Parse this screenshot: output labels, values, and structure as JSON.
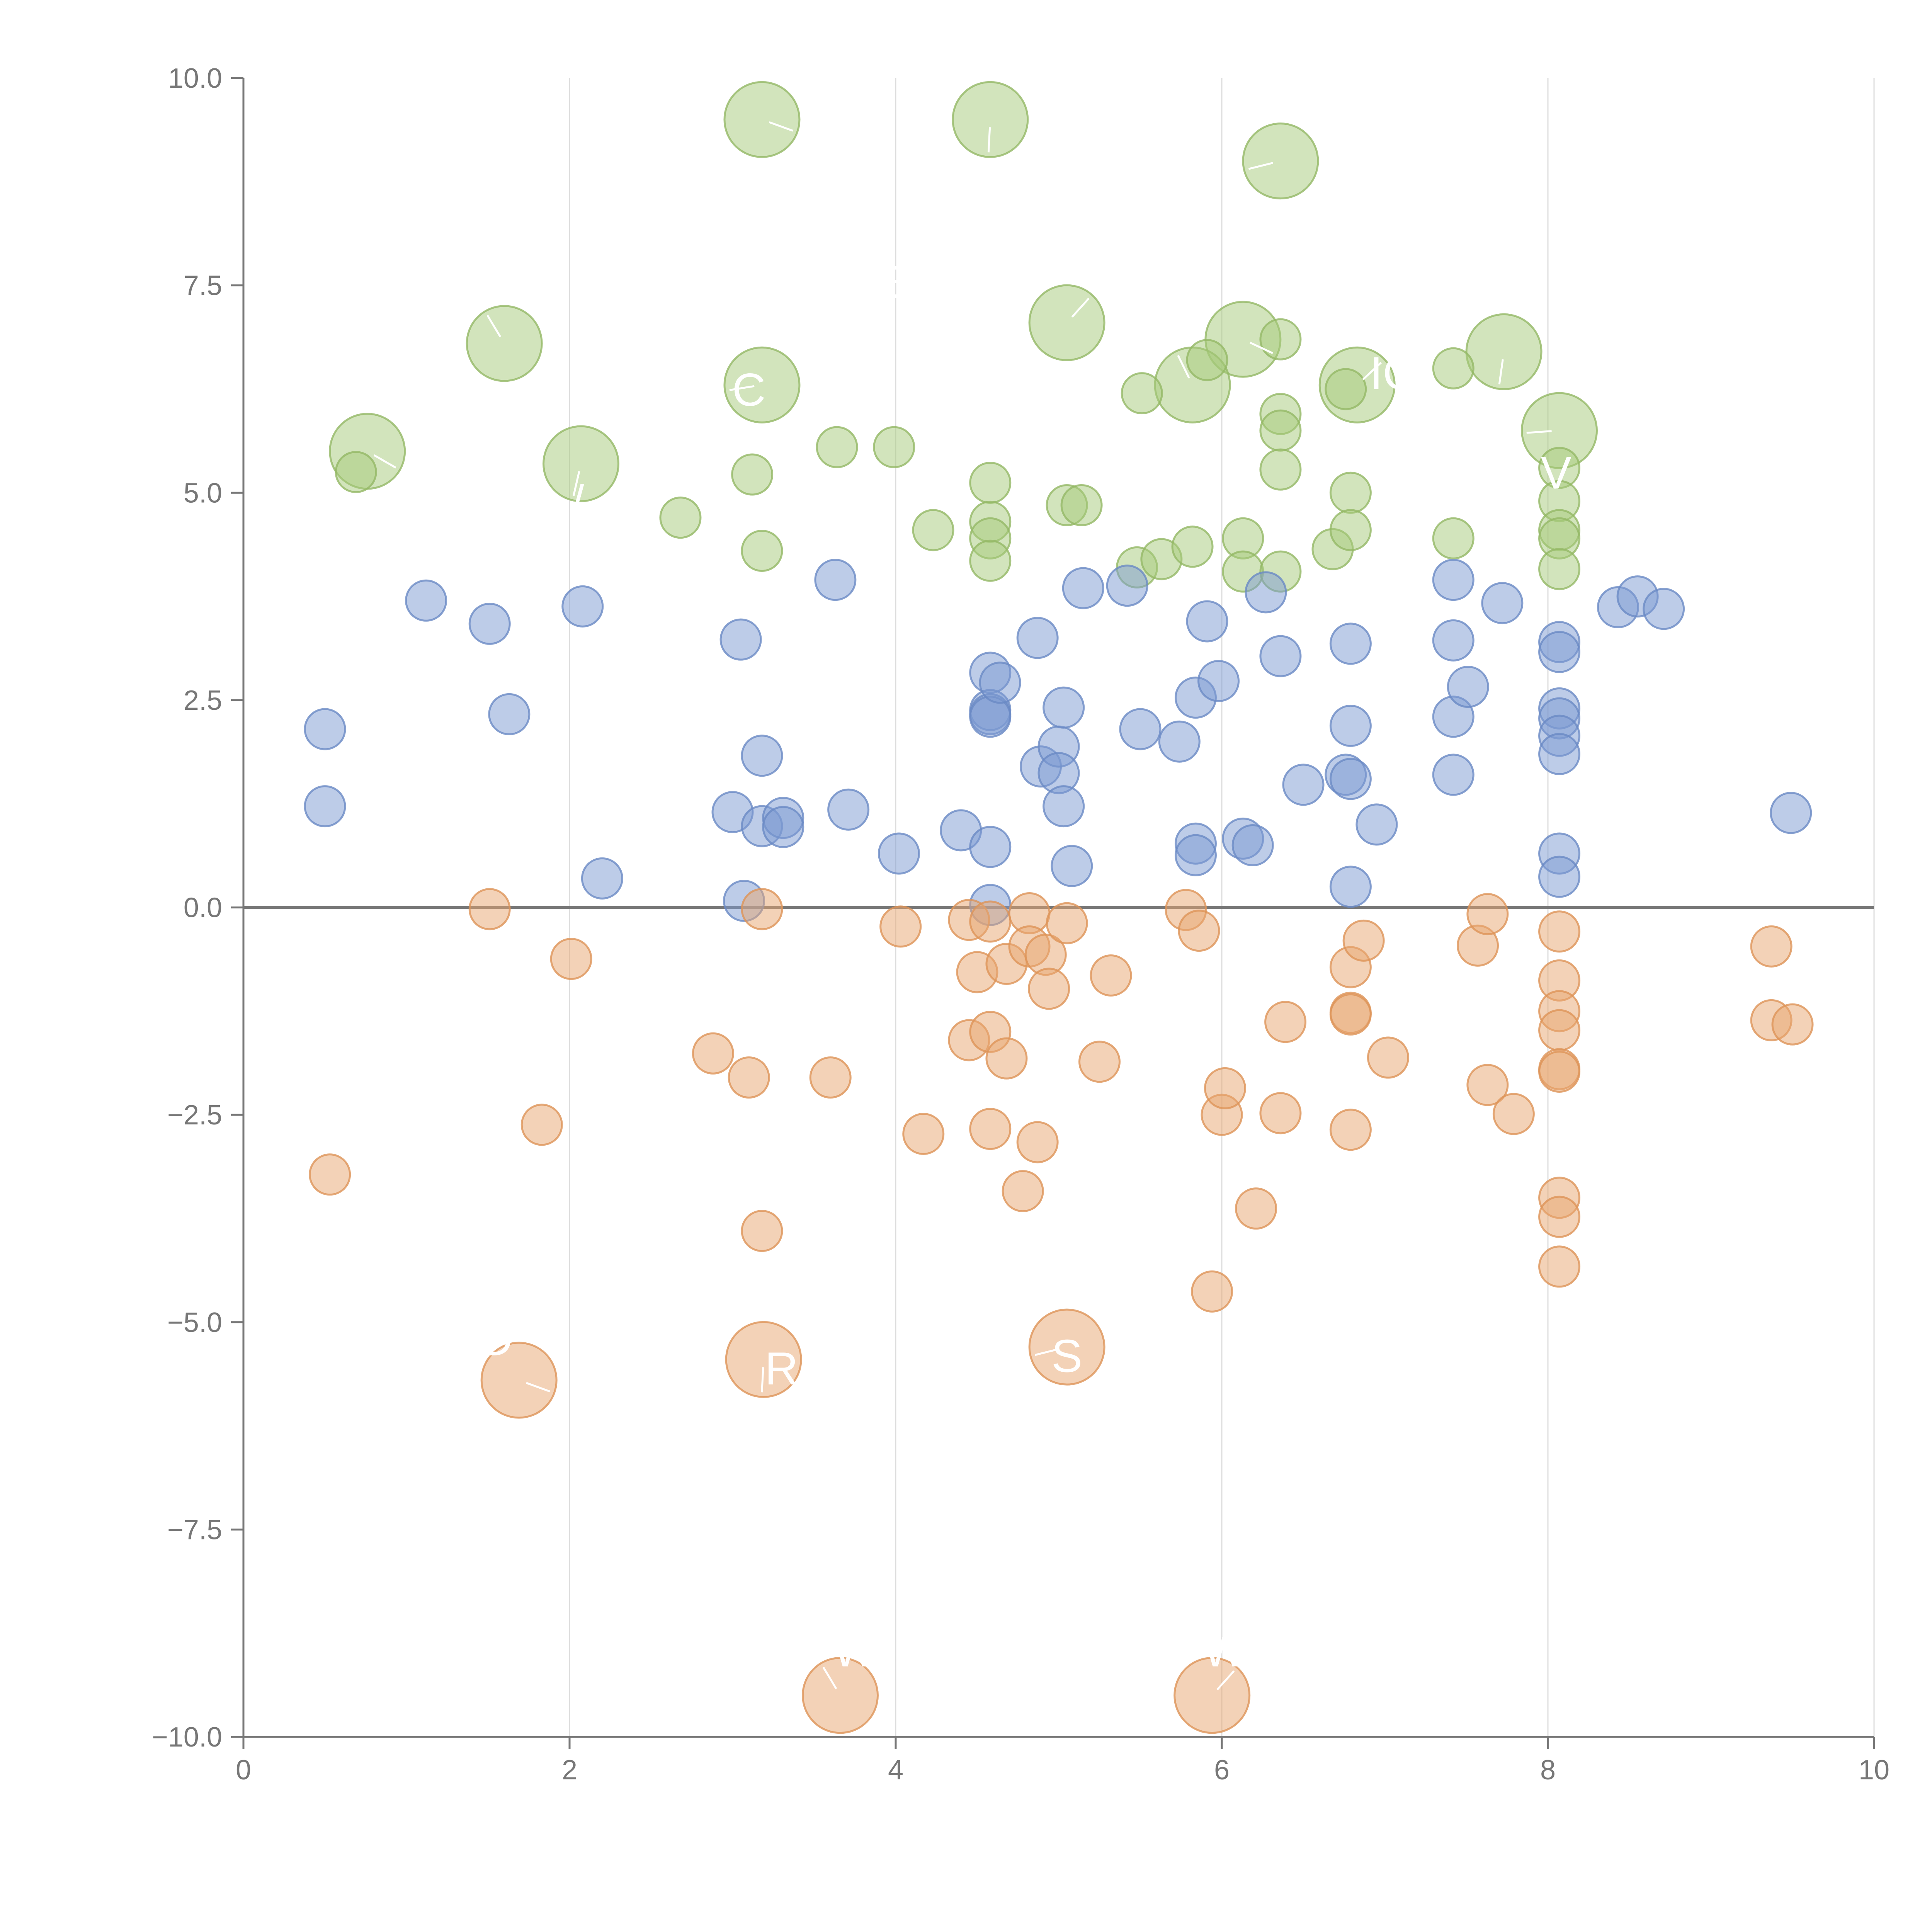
{
  "chart_data": {
    "type": "scatter",
    "title": "",
    "xlabel": "",
    "ylabel": "",
    "xlim": [
      0,
      10
    ],
    "ylim": [
      -10,
      10
    ],
    "x_ticks": [
      "0",
      "2",
      "4",
      "6",
      "8",
      "10"
    ],
    "y_ticks": [
      "10.0",
      "7.5",
      "5.0",
      "2.5",
      "0.0",
      "−2.5",
      "−5.0",
      "−7.5",
      "−10.0"
    ],
    "x_tick_values": [
      0,
      2,
      4,
      6,
      8,
      10
    ],
    "y_tick_values": [
      10,
      7.5,
      5,
      2.5,
      0,
      -2.5,
      -5,
      -7.5,
      -10
    ],
    "x_grid": true,
    "y_grid": false,
    "reference_line_y": 0,
    "legend": "none",
    "size_note": "r is bubble size in relative units (1 = small, 2 = large)",
    "colors": {
      "green": "#a6c97a",
      "blue": "#7b9ad1",
      "orange": "#e8a56f",
      "green_stroke": "#94b865",
      "blue_stroke": "#6a89c4",
      "orange_stroke": "#dd9458"
    },
    "series": [
      {
        "name": "green",
        "color_key": "green",
        "points": [
          {
            "x": 3.18,
            "y": 9.5,
            "r": 2
          },
          {
            "x": 4.58,
            "y": 9.5,
            "r": 2
          },
          {
            "x": 6.36,
            "y": 9.0,
            "r": 2
          },
          {
            "x": 1.6,
            "y": 6.8,
            "r": 2
          },
          {
            "x": 5.05,
            "y": 7.05,
            "r": 2
          },
          {
            "x": 6.13,
            "y": 6.85,
            "r": 2
          },
          {
            "x": 7.73,
            "y": 6.7,
            "r": 2
          },
          {
            "x": 3.18,
            "y": 6.3,
            "r": 2
          },
          {
            "x": 5.82,
            "y": 6.3,
            "r": 2
          },
          {
            "x": 6.83,
            "y": 6.3,
            "r": 2
          },
          {
            "x": 0.76,
            "y": 5.5,
            "r": 2
          },
          {
            "x": 2.07,
            "y": 5.35,
            "r": 2
          },
          {
            "x": 8.07,
            "y": 5.75,
            "r": 2
          },
          {
            "x": 0.69,
            "y": 5.25,
            "r": 1
          },
          {
            "x": 2.68,
            "y": 4.7,
            "r": 1
          },
          {
            "x": 3.12,
            "y": 5.22,
            "r": 1
          },
          {
            "x": 3.18,
            "y": 4.3,
            "r": 1
          },
          {
            "x": 3.64,
            "y": 5.55,
            "r": 1
          },
          {
            "x": 3.99,
            "y": 5.55,
            "r": 1
          },
          {
            "x": 4.23,
            "y": 4.55,
            "r": 1
          },
          {
            "x": 4.58,
            "y": 5.12,
            "r": 1
          },
          {
            "x": 4.58,
            "y": 4.65,
            "r": 1
          },
          {
            "x": 4.58,
            "y": 4.45,
            "r": 1
          },
          {
            "x": 4.58,
            "y": 4.18,
            "r": 1
          },
          {
            "x": 5.05,
            "y": 4.85,
            "r": 1
          },
          {
            "x": 5.14,
            "y": 4.85,
            "r": 1
          },
          {
            "x": 5.48,
            "y": 4.1,
            "r": 1
          },
          {
            "x": 5.51,
            "y": 6.2,
            "r": 1
          },
          {
            "x": 5.63,
            "y": 4.2,
            "r": 1
          },
          {
            "x": 5.82,
            "y": 4.35,
            "r": 1
          },
          {
            "x": 5.91,
            "y": 6.6,
            "r": 1
          },
          {
            "x": 6.13,
            "y": 4.45,
            "r": 1
          },
          {
            "x": 6.13,
            "y": 4.05,
            "r": 1
          },
          {
            "x": 6.36,
            "y": 6.85,
            "r": 1
          },
          {
            "x": 6.36,
            "y": 5.95,
            "r": 1
          },
          {
            "x": 6.36,
            "y": 5.75,
            "r": 1
          },
          {
            "x": 6.36,
            "y": 5.28,
            "r": 1
          },
          {
            "x": 6.36,
            "y": 4.05,
            "r": 1
          },
          {
            "x": 6.68,
            "y": 4.32,
            "r": 1
          },
          {
            "x": 6.76,
            "y": 6.25,
            "r": 1
          },
          {
            "x": 6.79,
            "y": 5.0,
            "r": 1
          },
          {
            "x": 6.79,
            "y": 4.55,
            "r": 1
          },
          {
            "x": 7.42,
            "y": 6.5,
            "r": 1
          },
          {
            "x": 7.42,
            "y": 4.45,
            "r": 1
          },
          {
            "x": 8.07,
            "y": 5.3,
            "r": 1
          },
          {
            "x": 8.07,
            "y": 4.9,
            "r": 1
          },
          {
            "x": 8.07,
            "y": 4.55,
            "r": 1
          },
          {
            "x": 8.07,
            "y": 4.45,
            "r": 1
          },
          {
            "x": 8.07,
            "y": 4.08,
            "r": 1
          }
        ]
      },
      {
        "name": "blue",
        "color_key": "blue",
        "points": [
          {
            "x": 0.5,
            "y": 2.15,
            "r": 1
          },
          {
            "x": 0.5,
            "y": 1.22,
            "r": 1
          },
          {
            "x": 1.12,
            "y": 3.7,
            "r": 1
          },
          {
            "x": 1.51,
            "y": 3.42,
            "r": 1
          },
          {
            "x": 1.63,
            "y": 2.33,
            "r": 1
          },
          {
            "x": 2.08,
            "y": 3.63,
            "r": 1
          },
          {
            "x": 2.2,
            "y": 0.35,
            "r": 1
          },
          {
            "x": 3.0,
            "y": 1.15,
            "r": 1
          },
          {
            "x": 3.05,
            "y": 3.23,
            "r": 1
          },
          {
            "x": 3.07,
            "y": 0.08,
            "r": 1
          },
          {
            "x": 3.18,
            "y": 1.83,
            "r": 1
          },
          {
            "x": 3.18,
            "y": 0.98,
            "r": 1
          },
          {
            "x": 3.31,
            "y": 1.08,
            "r": 1
          },
          {
            "x": 3.31,
            "y": 0.97,
            "r": 1
          },
          {
            "x": 3.63,
            "y": 3.95,
            "r": 1
          },
          {
            "x": 3.71,
            "y": 1.18,
            "r": 1
          },
          {
            "x": 4.02,
            "y": 0.65,
            "r": 1
          },
          {
            "x": 4.4,
            "y": 0.93,
            "r": 1
          },
          {
            "x": 4.58,
            "y": 2.83,
            "r": 1
          },
          {
            "x": 4.58,
            "y": 2.38,
            "r": 1
          },
          {
            "x": 4.58,
            "y": 2.33,
            "r": 1
          },
          {
            "x": 4.58,
            "y": 2.3,
            "r": 1
          },
          {
            "x": 4.58,
            "y": 0.73,
            "r": 1
          },
          {
            "x": 4.58,
            "y": 0.03,
            "r": 1
          },
          {
            "x": 4.64,
            "y": 2.71,
            "r": 1
          },
          {
            "x": 4.87,
            "y": 3.25,
            "r": 1
          },
          {
            "x": 4.89,
            "y": 1.7,
            "r": 1
          },
          {
            "x": 5.0,
            "y": 1.94,
            "r": 1
          },
          {
            "x": 5.0,
            "y": 1.62,
            "r": 1
          },
          {
            "x": 5.03,
            "y": 2.41,
            "r": 1
          },
          {
            "x": 5.03,
            "y": 1.22,
            "r": 1
          },
          {
            "x": 5.08,
            "y": 0.5,
            "r": 1
          },
          {
            "x": 5.15,
            "y": 3.85,
            "r": 1
          },
          {
            "x": 5.42,
            "y": 3.88,
            "r": 1
          },
          {
            "x": 5.5,
            "y": 2.15,
            "r": 1
          },
          {
            "x": 5.74,
            "y": 2.0,
            "r": 1
          },
          {
            "x": 5.84,
            "y": 2.53,
            "r": 1
          },
          {
            "x": 5.84,
            "y": 0.77,
            "r": 1
          },
          {
            "x": 5.84,
            "y": 0.63,
            "r": 1
          },
          {
            "x": 5.91,
            "y": 3.45,
            "r": 1
          },
          {
            "x": 5.98,
            "y": 2.73,
            "r": 1
          },
          {
            "x": 6.13,
            "y": 0.83,
            "r": 1
          },
          {
            "x": 6.19,
            "y": 0.75,
            "r": 1
          },
          {
            "x": 6.27,
            "y": 3.8,
            "r": 1
          },
          {
            "x": 6.36,
            "y": 3.03,
            "r": 1
          },
          {
            "x": 6.5,
            "y": 1.48,
            "r": 1
          },
          {
            "x": 6.76,
            "y": 1.6,
            "r": 1
          },
          {
            "x": 6.79,
            "y": 3.18,
            "r": 1
          },
          {
            "x": 6.79,
            "y": 2.19,
            "r": 1
          },
          {
            "x": 6.79,
            "y": 1.55,
            "r": 1
          },
          {
            "x": 6.79,
            "y": 0.25,
            "r": 1
          },
          {
            "x": 6.95,
            "y": 1.0,
            "r": 1
          },
          {
            "x": 7.42,
            "y": 3.95,
            "r": 1
          },
          {
            "x": 7.42,
            "y": 3.22,
            "r": 1
          },
          {
            "x": 7.42,
            "y": 2.3,
            "r": 1
          },
          {
            "x": 7.42,
            "y": 1.6,
            "r": 1
          },
          {
            "x": 7.51,
            "y": 2.66,
            "r": 1
          },
          {
            "x": 7.72,
            "y": 3.67,
            "r": 1
          },
          {
            "x": 8.07,
            "y": 3.2,
            "r": 1
          },
          {
            "x": 8.07,
            "y": 3.08,
            "r": 1
          },
          {
            "x": 8.07,
            "y": 2.4,
            "r": 1
          },
          {
            "x": 8.07,
            "y": 2.28,
            "r": 1
          },
          {
            "x": 8.07,
            "y": 2.07,
            "r": 1
          },
          {
            "x": 8.07,
            "y": 1.85,
            "r": 1
          },
          {
            "x": 8.07,
            "y": 0.65,
            "r": 1
          },
          {
            "x": 8.07,
            "y": 0.37,
            "r": 1
          },
          {
            "x": 8.43,
            "y": 3.62,
            "r": 1
          },
          {
            "x": 8.55,
            "y": 3.75,
            "r": 1
          },
          {
            "x": 8.71,
            "y": 3.6,
            "r": 1
          },
          {
            "x": 9.49,
            "y": 1.14,
            "r": 1
          }
        ]
      },
      {
        "name": "orange",
        "color_key": "orange",
        "points": [
          {
            "x": 1.69,
            "y": -5.7,
            "r": 2
          },
          {
            "x": 3.19,
            "y": -5.45,
            "r": 2
          },
          {
            "x": 5.05,
            "y": -5.3,
            "r": 2
          },
          {
            "x": 3.66,
            "y": -9.5,
            "r": 2
          },
          {
            "x": 5.94,
            "y": -9.5,
            "r": 2
          },
          {
            "x": 0.53,
            "y": -3.22,
            "r": 1
          },
          {
            "x": 1.51,
            "y": -0.02,
            "r": 1
          },
          {
            "x": 1.83,
            "y": -2.62,
            "r": 1
          },
          {
            "x": 2.01,
            "y": -0.62,
            "r": 1
          },
          {
            "x": 2.88,
            "y": -1.76,
            "r": 1
          },
          {
            "x": 3.1,
            "y": -2.05,
            "r": 1
          },
          {
            "x": 3.18,
            "y": -0.02,
            "r": 1
          },
          {
            "x": 3.18,
            "y": -3.9,
            "r": 1
          },
          {
            "x": 3.6,
            "y": -2.05,
            "r": 1
          },
          {
            "x": 4.03,
            "y": -0.23,
            "r": 1
          },
          {
            "x": 4.17,
            "y": -2.73,
            "r": 1
          },
          {
            "x": 4.45,
            "y": -0.15,
            "r": 1
          },
          {
            "x": 4.45,
            "y": -1.6,
            "r": 1
          },
          {
            "x": 4.5,
            "y": -0.78,
            "r": 1
          },
          {
            "x": 4.58,
            "y": -0.17,
            "r": 1
          },
          {
            "x": 4.58,
            "y": -1.5,
            "r": 1
          },
          {
            "x": 4.58,
            "y": -2.67,
            "r": 1
          },
          {
            "x": 4.68,
            "y": -0.68,
            "r": 1
          },
          {
            "x": 4.68,
            "y": -1.82,
            "r": 1
          },
          {
            "x": 4.78,
            "y": -3.42,
            "r": 1
          },
          {
            "x": 4.82,
            "y": -0.07,
            "r": 1
          },
          {
            "x": 4.82,
            "y": -0.47,
            "r": 1
          },
          {
            "x": 4.87,
            "y": -2.83,
            "r": 1
          },
          {
            "x": 4.92,
            "y": -0.57,
            "r": 1
          },
          {
            "x": 4.94,
            "y": -0.98,
            "r": 1
          },
          {
            "x": 5.05,
            "y": -0.19,
            "r": 1
          },
          {
            "x": 5.25,
            "y": -1.86,
            "r": 1
          },
          {
            "x": 5.32,
            "y": -0.82,
            "r": 1
          },
          {
            "x": 5.78,
            "y": -0.03,
            "r": 1
          },
          {
            "x": 5.86,
            "y": -0.28,
            "r": 1
          },
          {
            "x": 5.94,
            "y": -4.63,
            "r": 1
          },
          {
            "x": 6.0,
            "y": -2.5,
            "r": 1
          },
          {
            "x": 6.02,
            "y": -2.18,
            "r": 1
          },
          {
            "x": 6.21,
            "y": -3.63,
            "r": 1
          },
          {
            "x": 6.36,
            "y": -2.48,
            "r": 1
          },
          {
            "x": 6.39,
            "y": -1.38,
            "r": 1
          },
          {
            "x": 6.79,
            "y": -0.72,
            "r": 1
          },
          {
            "x": 6.79,
            "y": -1.27,
            "r": 1
          },
          {
            "x": 6.79,
            "y": -1.29,
            "r": 1
          },
          {
            "x": 6.79,
            "y": -2.68,
            "r": 1
          },
          {
            "x": 6.87,
            "y": -0.4,
            "r": 1
          },
          {
            "x": 7.02,
            "y": -1.81,
            "r": 1
          },
          {
            "x": 7.57,
            "y": -0.46,
            "r": 1
          },
          {
            "x": 7.63,
            "y": -0.08,
            "r": 1
          },
          {
            "x": 7.63,
            "y": -2.14,
            "r": 1
          },
          {
            "x": 7.79,
            "y": -2.49,
            "r": 1
          },
          {
            "x": 8.07,
            "y": -0.29,
            "r": 1
          },
          {
            "x": 8.07,
            "y": -0.88,
            "r": 1
          },
          {
            "x": 8.07,
            "y": -1.25,
            "r": 1
          },
          {
            "x": 8.07,
            "y": -1.48,
            "r": 1
          },
          {
            "x": 8.07,
            "y": -1.95,
            "r": 1
          },
          {
            "x": 8.07,
            "y": -1.98,
            "r": 1
          },
          {
            "x": 8.07,
            "y": -3.5,
            "r": 1
          },
          {
            "x": 8.07,
            "y": -3.73,
            "r": 1
          },
          {
            "x": 8.07,
            "y": -4.33,
            "r": 1
          },
          {
            "x": 9.37,
            "y": -0.47,
            "r": 1
          },
          {
            "x": 9.37,
            "y": -1.36,
            "r": 1
          },
          {
            "x": 9.5,
            "y": -1.41,
            "r": 1
          }
        ]
      }
    ],
    "annotations": [
      {
        "text": "C",
        "x": 3.1,
        "y": 6.05
      },
      {
        "text": "IC",
        "x": 7.05,
        "y": 6.25
      },
      {
        "text": "E",
        "x": 4.02,
        "y": 7.35
      },
      {
        "text": "V",
        "x": 8.05,
        "y": 5.05
      },
      {
        "text": "/",
        "x": 2.05,
        "y": 4.7
      },
      {
        "text": "D",
        "x": 1.55,
        "y": -5.4
      },
      {
        "text": "R",
        "x": 3.3,
        "y": -5.75
      },
      {
        "text": "S",
        "x": 5.05,
        "y": -5.6
      },
      {
        "text": "W",
        "x": 3.75,
        "y": -9.15
      },
      {
        "text": "W",
        "x": 6.02,
        "y": -9.15
      }
    ]
  }
}
